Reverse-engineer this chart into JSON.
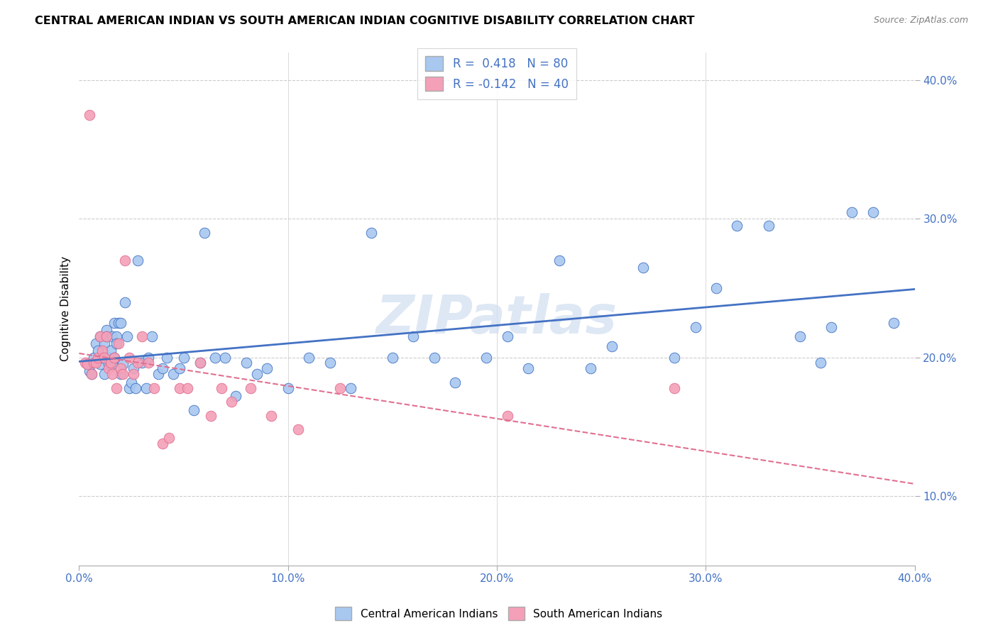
{
  "title": "CENTRAL AMERICAN INDIAN VS SOUTH AMERICAN INDIAN COGNITIVE DISABILITY CORRELATION CHART",
  "source": "Source: ZipAtlas.com",
  "ylabel": "Cognitive Disability",
  "xlim": [
    0.0,
    0.4
  ],
  "ylim": [
    0.05,
    0.42
  ],
  "yticks": [
    0.1,
    0.2,
    0.3,
    0.4
  ],
  "xticks": [
    0.0,
    0.1,
    0.2,
    0.3,
    0.4
  ],
  "r_blue": 0.418,
  "n_blue": 80,
  "r_pink": -0.142,
  "n_pink": 40,
  "color_blue": "#A8C8F0",
  "color_pink": "#F4A0B8",
  "line_blue": "#4472C4",
  "line_pink": "#E07090",
  "watermark": "ZIPatlas",
  "legend_label_blue": "Central American Indians",
  "legend_label_pink": "South American Indians",
  "blue_x": [
    0.004,
    0.005,
    0.006,
    0.007,
    0.008,
    0.009,
    0.01,
    0.01,
    0.011,
    0.012,
    0.012,
    0.013,
    0.013,
    0.014,
    0.014,
    0.015,
    0.015,
    0.016,
    0.016,
    0.017,
    0.017,
    0.018,
    0.018,
    0.019,
    0.02,
    0.02,
    0.021,
    0.022,
    0.023,
    0.024,
    0.025,
    0.026,
    0.027,
    0.028,
    0.03,
    0.032,
    0.033,
    0.035,
    0.038,
    0.04,
    0.042,
    0.045,
    0.048,
    0.05,
    0.055,
    0.058,
    0.06,
    0.065,
    0.07,
    0.075,
    0.08,
    0.085,
    0.09,
    0.1,
    0.11,
    0.12,
    0.13,
    0.14,
    0.15,
    0.16,
    0.17,
    0.18,
    0.195,
    0.205,
    0.215,
    0.23,
    0.245,
    0.255,
    0.27,
    0.285,
    0.295,
    0.305,
    0.315,
    0.33,
    0.345,
    0.355,
    0.36,
    0.37,
    0.38,
    0.39
  ],
  "blue_y": [
    0.195,
    0.19,
    0.188,
    0.2,
    0.21,
    0.205,
    0.215,
    0.195,
    0.2,
    0.188,
    0.21,
    0.22,
    0.215,
    0.195,
    0.2,
    0.195,
    0.205,
    0.215,
    0.195,
    0.2,
    0.225,
    0.215,
    0.21,
    0.225,
    0.225,
    0.188,
    0.195,
    0.24,
    0.215,
    0.178,
    0.182,
    0.192,
    0.178,
    0.27,
    0.196,
    0.178,
    0.2,
    0.215,
    0.188,
    0.192,
    0.2,
    0.188,
    0.192,
    0.2,
    0.162,
    0.196,
    0.29,
    0.2,
    0.2,
    0.172,
    0.196,
    0.188,
    0.192,
    0.178,
    0.2,
    0.196,
    0.178,
    0.29,
    0.2,
    0.215,
    0.2,
    0.182,
    0.2,
    0.215,
    0.192,
    0.27,
    0.192,
    0.208,
    0.265,
    0.2,
    0.222,
    0.25,
    0.295,
    0.295,
    0.215,
    0.196,
    0.222,
    0.305,
    0.305,
    0.225
  ],
  "pink_x": [
    0.003,
    0.004,
    0.005,
    0.006,
    0.007,
    0.008,
    0.009,
    0.01,
    0.011,
    0.012,
    0.013,
    0.014,
    0.015,
    0.016,
    0.017,
    0.018,
    0.019,
    0.02,
    0.021,
    0.022,
    0.024,
    0.026,
    0.028,
    0.03,
    0.033,
    0.036,
    0.04,
    0.043,
    0.048,
    0.052,
    0.058,
    0.063,
    0.068,
    0.073,
    0.082,
    0.092,
    0.105,
    0.125,
    0.205,
    0.285
  ],
  "pink_y": [
    0.196,
    0.195,
    0.375,
    0.188,
    0.196,
    0.196,
    0.2,
    0.215,
    0.205,
    0.2,
    0.215,
    0.192,
    0.196,
    0.188,
    0.2,
    0.178,
    0.21,
    0.192,
    0.188,
    0.27,
    0.2,
    0.188,
    0.196,
    0.215,
    0.196,
    0.178,
    0.138,
    0.142,
    0.178,
    0.178,
    0.196,
    0.158,
    0.178,
    0.168,
    0.178,
    0.158,
    0.148,
    0.178,
    0.158,
    0.178
  ]
}
